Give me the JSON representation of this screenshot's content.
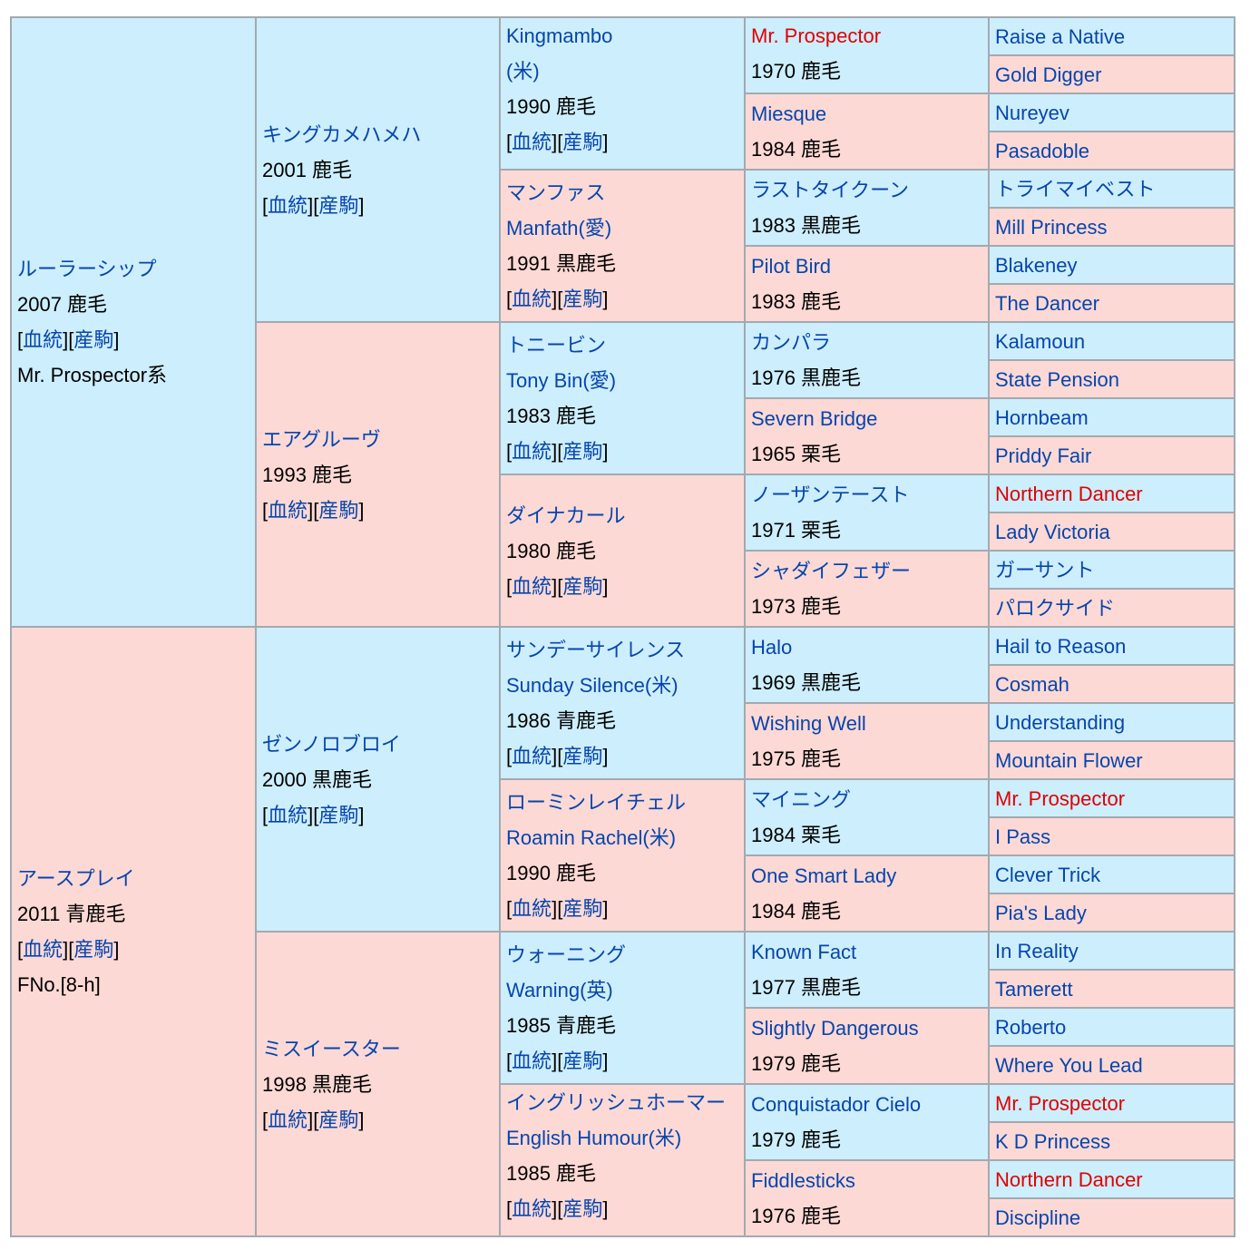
{
  "bracket_open": "[",
  "bracket_mid": "][",
  "bracket_close": "]",
  "colors": {
    "male_bg": "#cdeefc",
    "female_bg": "#fdd9d5",
    "link": "#0645ad",
    "highlight": "#e00000",
    "border": "#a2a9b1"
  },
  "gen1": [
    {
      "name": "ルーラーシップ",
      "year": "2007 鹿毛",
      "link1": "血統",
      "link2": "産駒",
      "extra": "Mr. Prospector系"
    },
    {
      "name": "アースプレイ",
      "year": "2011 青鹿毛",
      "link1": "血統",
      "link2": "産駒",
      "extra": "FNo.[8-h]"
    }
  ],
  "gen2": [
    {
      "name": "キングカメハメハ",
      "year": "2001 鹿毛",
      "link1": "血統",
      "link2": "産駒"
    },
    {
      "name": "エアグルーヴ",
      "year": "1993 鹿毛",
      "link1": "血統",
      "link2": "産駒"
    },
    {
      "name": "ゼンノロブロイ",
      "year": "2000 黒鹿毛",
      "link1": "血統",
      "link2": "産駒"
    },
    {
      "name": "ミスイースター",
      "year": "1998 黒鹿毛",
      "link1": "血統",
      "link2": "産駒"
    }
  ],
  "gen3": [
    {
      "name": "Kingmambo",
      "alt": "(米)",
      "year": "1990 鹿毛",
      "link1": "血統",
      "link2": "産駒"
    },
    {
      "name": "マンファス",
      "alt": "Manfath(愛)",
      "year": "1991 黒鹿毛",
      "link1": "血統",
      "link2": "産駒"
    },
    {
      "name": "トニービン",
      "alt": "Tony Bin(愛)",
      "year": "1983 鹿毛",
      "link1": "血統",
      "link2": "産駒"
    },
    {
      "name": "ダイナカール",
      "year": "1980 鹿毛",
      "link1": "血統",
      "link2": "産駒"
    },
    {
      "name": "サンデーサイレンス",
      "alt": "Sunday Silence(米)",
      "year": "1986 青鹿毛",
      "link1": "血統",
      "link2": "産駒"
    },
    {
      "name": "ローミンレイチェル",
      "alt": "Roamin Rachel(米)",
      "year": "1990 鹿毛",
      "link1": "血統",
      "link2": "産駒"
    },
    {
      "name": "ウォーニング",
      "alt": "Warning(英)",
      "year": "1985 青鹿毛",
      "link1": "血統",
      "link2": "産駒"
    },
    {
      "name": "イングリッシュホーマー",
      "alt": "English Humour(米)",
      "year": "1985 鹿毛",
      "link1": "血統",
      "link2": "産駒"
    }
  ],
  "gen4": [
    {
      "name": "Mr. Prospector",
      "year": "1970 鹿毛"
    },
    {
      "name": "Miesque",
      "year": "1984 鹿毛"
    },
    {
      "name": "ラストタイクーン",
      "year": "1983 黒鹿毛"
    },
    {
      "name": "Pilot Bird",
      "year": "1983 鹿毛"
    },
    {
      "name": "カンパラ",
      "year": "1976 黒鹿毛"
    },
    {
      "name": "Severn Bridge",
      "year": "1965 栗毛"
    },
    {
      "name": "ノーザンテースト",
      "year": "1971 栗毛"
    },
    {
      "name": "シャダイフェザー",
      "year": "1973 鹿毛"
    },
    {
      "name": "Halo",
      "year": "1969 黒鹿毛"
    },
    {
      "name": "Wishing Well",
      "year": "1975 鹿毛"
    },
    {
      "name": "マイニング",
      "year": "1984 栗毛"
    },
    {
      "name": "One Smart Lady",
      "year": "1984 鹿毛"
    },
    {
      "name": "Known Fact",
      "year": "1977 黒鹿毛"
    },
    {
      "name": "Slightly Dangerous",
      "year": "1979 鹿毛"
    },
    {
      "name": "Conquistador Cielo",
      "year": "1979 鹿毛"
    },
    {
      "name": "Fiddlesticks",
      "year": "1976 鹿毛"
    }
  ],
  "gen5": [
    "Raise a Native",
    "Gold Digger",
    "Nureyev",
    "Pasadoble",
    "トライマイベスト",
    "Mill Princess",
    "Blakeney",
    "The Dancer",
    "Kalamoun",
    "State Pension",
    "Hornbeam",
    "Priddy Fair",
    "Northern Dancer",
    "Lady Victoria",
    "ガーサント",
    "パロクサイド",
    "Hail to Reason",
    "Cosmah",
    "Understanding",
    "Mountain Flower",
    "Mr. Prospector",
    "I Pass",
    "Clever Trick",
    "Pia's Lady",
    "In Reality",
    "Tamerett",
    "Roberto",
    "Where You Lead",
    "Mr. Prospector",
    "K D Princess",
    "Northern Dancer",
    "Discipline"
  ]
}
